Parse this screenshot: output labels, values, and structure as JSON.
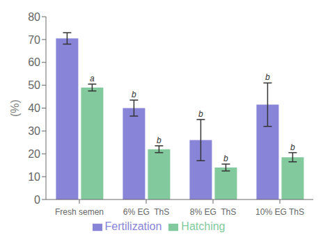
{
  "chart_data": {
    "type": "bar",
    "categories": [
      "Fresh semen",
      "6% EG  ThS",
      "8% EG  ThS",
      "10% EG ThS"
    ],
    "series": [
      {
        "name": "Fertilization",
        "color": "#8884d8",
        "values": [
          70.5,
          40.0,
          26.0,
          41.5
        ],
        "errors": [
          2.5,
          3.5,
          9.0,
          9.5
        ],
        "annotations": [
          null,
          "b",
          "b",
          "b"
        ]
      },
      {
        "name": "Hatching",
        "color": "#82ca9d",
        "values": [
          49.0,
          22.0,
          14.0,
          18.5
        ],
        "errors": [
          1.5,
          1.5,
          1.5,
          2.0
        ],
        "annotations": [
          "a",
          "b",
          "b",
          "b"
        ]
      }
    ],
    "ylabel": "(%)",
    "ylim": [
      0,
      80
    ],
    "yticks": [
      0,
      10,
      20,
      30,
      40,
      50,
      60,
      70,
      80
    ],
    "legend": "bottom",
    "grid": false
  }
}
